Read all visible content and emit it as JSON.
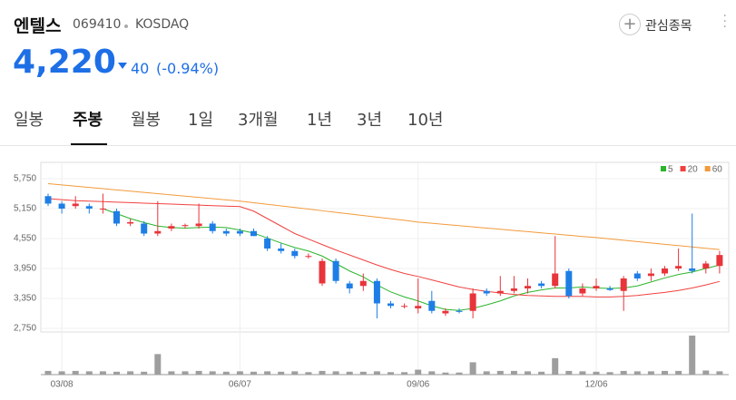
{
  "header": {
    "name": "엔텔스",
    "code": "069410",
    "market": "KOSDAQ",
    "watch_button": "관심종목"
  },
  "price": {
    "value": "4,220",
    "change": "40",
    "change_pct": "(-0.94%)"
  },
  "tabs": [
    "일봉",
    "주봉",
    "월봉",
    "1일",
    "3개월",
    "1년",
    "3년",
    "10년"
  ],
  "selected_tab": 1,
  "chart_data": {
    "type": "candlestick",
    "categories": [
      null,
      "03/08",
      null,
      null,
      null,
      null,
      null,
      null,
      null,
      null,
      null,
      null,
      null,
      null,
      "06/07",
      null,
      null,
      null,
      null,
      null,
      null,
      null,
      null,
      null,
      null,
      null,
      null,
      "09/06",
      null,
      null,
      null,
      null,
      null,
      null,
      null,
      null,
      null,
      null,
      null,
      null,
      "12/06",
      null,
      null,
      null,
      null,
      null,
      null,
      null,
      null,
      null
    ],
    "open": [
      5400,
      5250,
      5200,
      5200,
      5150,
      5100,
      4850,
      4850,
      4650,
      4750,
      4800,
      4800,
      4850,
      4700,
      4700,
      4700,
      4550,
      4350,
      4300,
      4200,
      3650,
      4100,
      3650,
      3600,
      3700,
      3250,
      3200,
      3150,
      3300,
      3050,
      3100,
      3100,
      3500,
      3450,
      3500,
      3550,
      3650,
      3600,
      3900,
      3450,
      3550,
      3550,
      3500,
      3850,
      3800,
      3850,
      3950,
      3950,
      3950,
      4000
    ],
    "high": [
      5450,
      5300,
      5400,
      5250,
      5450,
      5150,
      4950,
      4900,
      5300,
      4850,
      4850,
      5250,
      4900,
      4750,
      4750,
      4750,
      4600,
      4450,
      4350,
      4250,
      4150,
      4150,
      3700,
      3850,
      3750,
      3300,
      3250,
      3750,
      3500,
      3150,
      3150,
      3550,
      3550,
      3800,
      3800,
      3750,
      3700,
      4600,
      3950,
      3650,
      3750,
      3600,
      3800,
      3900,
      3950,
      4000,
      4350,
      5050,
      4100,
      4300
    ],
    "low": [
      5200,
      5050,
      5150,
      5050,
      5050,
      4800,
      4800,
      4600,
      4600,
      4700,
      4750,
      4750,
      4650,
      4600,
      4600,
      4600,
      4300,
      4250,
      4150,
      4150,
      3600,
      3650,
      3450,
      3500,
      2950,
      3150,
      3150,
      3050,
      3050,
      3000,
      3050,
      2950,
      3400,
      3400,
      3450,
      3450,
      3550,
      3550,
      3350,
      3400,
      3500,
      3500,
      3100,
      3700,
      3700,
      3800,
      3900,
      3850,
      3850,
      3850
    ],
    "close": [
      5250,
      5150,
      5250,
      5150,
      5150,
      4850,
      4880,
      4650,
      4700,
      4800,
      4820,
      4850,
      4700,
      4650,
      4650,
      4600,
      4350,
      4300,
      4200,
      4200,
      4100,
      3700,
      3550,
      3700,
      3250,
      3200,
      3200,
      3200,
      3100,
      3100,
      3080,
      3450,
      3450,
      3500,
      3550,
      3600,
      3600,
      3850,
      3400,
      3550,
      3600,
      3520,
      3750,
      3750,
      3850,
      3950,
      4000,
      3900,
      4050,
      4220
    ],
    "up_color": "#e8343a",
    "down_color": "#1e7ee6",
    "series": [
      {
        "name": "5",
        "color": "#2bb52b",
        "values": [
          null,
          null,
          null,
          null,
          5150,
          5050,
          4950,
          4870,
          4800,
          4770,
          4760,
          4770,
          4780,
          4770,
          4720,
          4660,
          4560,
          4460,
          4370,
          4300,
          4200,
          4050,
          3900,
          3780,
          3620,
          3480,
          3380,
          3300,
          3200,
          3130,
          3110,
          3150,
          3220,
          3300,
          3400,
          3470,
          3520,
          3560,
          3560,
          3580,
          3560,
          3550,
          3560,
          3600,
          3680,
          3760,
          3830,
          3880,
          3950,
          4020
        ]
      },
      {
        "name": "20",
        "color": "#f0413f",
        "values": [
          5350,
          5330,
          5310,
          5300,
          5290,
          5280,
          5270,
          5260,
          5250,
          5240,
          5230,
          5220,
          5210,
          5200,
          5190,
          5100,
          4950,
          4800,
          4650,
          4540,
          4430,
          4320,
          4220,
          4120,
          4020,
          3930,
          3850,
          3790,
          3720,
          3650,
          3580,
          3530,
          3490,
          3460,
          3430,
          3410,
          3400,
          3390,
          3390,
          3390,
          3380,
          3380,
          3390,
          3410,
          3440,
          3470,
          3510,
          3560,
          3620,
          3690
        ]
      },
      {
        "name": "60",
        "color": "#f39a3c",
        "values": [
          5650,
          5625,
          5600,
          5575,
          5550,
          5525,
          5500,
          5475,
          5450,
          5425,
          5400,
          5375,
          5350,
          5325,
          5300,
          5268,
          5236,
          5204,
          5172,
          5140,
          5108,
          5076,
          5044,
          5012,
          4980,
          4948,
          4916,
          4880,
          4856,
          4832,
          4808,
          4784,
          4760,
          4736,
          4712,
          4688,
          4664,
          4640,
          4616,
          4592,
          4570,
          4543,
          4516,
          4489,
          4462,
          4435,
          4408,
          4381,
          4354,
          4330
        ]
      }
    ],
    "volume": {
      "color": "#9e9e9e",
      "values": [
        90000,
        80000,
        90000,
        80000,
        80000,
        70000,
        80000,
        70000,
        500000,
        80000,
        80000,
        90000,
        80000,
        70000,
        80000,
        70000,
        80000,
        70000,
        80000,
        60000,
        90000,
        80000,
        70000,
        70000,
        80000,
        60000,
        60000,
        120000,
        80000,
        50000,
        50000,
        300000,
        80000,
        90000,
        90000,
        80000,
        70000,
        400000,
        90000,
        80000,
        70000,
        60000,
        90000,
        80000,
        80000,
        90000,
        90000,
        950000,
        100000,
        80000
      ]
    },
    "ylim": [
      2750,
      5750
    ],
    "yticks": [
      {
        "value": 2750,
        "label": "2,750"
      },
      {
        "value": 3350,
        "label": "3,350"
      },
      {
        "value": 3950,
        "label": "3,950"
      },
      {
        "value": 4550,
        "label": "4,550"
      },
      {
        "value": 5150,
        "label": "5,150"
      },
      {
        "value": 5750,
        "label": "5,750"
      }
    ],
    "grid": true,
    "legend": "top-right"
  }
}
